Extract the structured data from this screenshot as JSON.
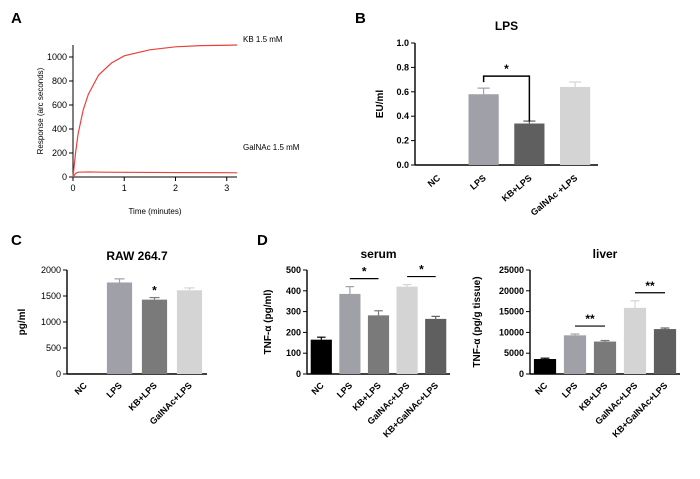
{
  "panels": {
    "A": "A",
    "B": "B",
    "C": "C",
    "D": "D"
  },
  "chart_data": [
    {
      "id": "A",
      "type": "line",
      "title": "",
      "xlabel": "Time (minutes)",
      "ylabel": "Response (arc seconds)",
      "xlim": [
        0,
        3.2
      ],
      "ylim": [
        0,
        1100
      ],
      "xticks": [
        "0",
        "1",
        "2",
        "3"
      ],
      "yticks": [
        "0",
        "200",
        "400",
        "600",
        "800",
        "1000"
      ],
      "color": "#e8423c",
      "series": [
        {
          "name": "KB 1.5 mM",
          "x": [
            0,
            0.05,
            0.1,
            0.2,
            0.3,
            0.5,
            0.75,
            1.0,
            1.5,
            2.0,
            2.5,
            3.0,
            3.2
          ],
          "values": [
            0,
            200,
            360,
            560,
            690,
            850,
            950,
            1010,
            1060,
            1085,
            1095,
            1098,
            1100
          ]
        },
        {
          "name": "GalNAc 1.5 mM",
          "x": [
            0,
            0.05,
            0.1,
            0.3,
            0.6,
            1.0,
            2.0,
            3.0,
            3.2
          ],
          "values": [
            0,
            30,
            40,
            42,
            40,
            39,
            37,
            36,
            35
          ]
        }
      ]
    },
    {
      "id": "B",
      "type": "bar",
      "title": "LPS",
      "ylabel": "EU/ml",
      "ylim": [
        0,
        1.0
      ],
      "yticks": [
        "0.0",
        "0.2",
        "0.4",
        "0.6",
        "0.8",
        "1.0"
      ],
      "categories": [
        "NC",
        "LPS",
        "KB+LPS",
        "GalNAc +LPS"
      ],
      "values": [
        0,
        0.58,
        0.34,
        0.64
      ],
      "errors": [
        0,
        0.05,
        0.02,
        0.04
      ],
      "colors": [
        "#000000",
        "#a0a0a8",
        "#5f5f5f",
        "#d4d4d4"
      ],
      "significance": [
        {
          "from": 1,
          "to": 2,
          "label": "*"
        }
      ]
    },
    {
      "id": "C",
      "type": "bar",
      "title": "RAW 264.7",
      "ylabel": "pg/ml",
      "ylim": [
        0,
        2000
      ],
      "yticks": [
        "0",
        "500",
        "1000",
        "1500",
        "2000"
      ],
      "categories": [
        "NC",
        "LPS",
        "KB+LPS",
        "GalNAc+LPS"
      ],
      "values": [
        10,
        1760,
        1430,
        1610
      ],
      "errors": [
        0,
        70,
        40,
        45
      ],
      "colors": [
        "#000000",
        "#a0a0a8",
        "#7a7a7a",
        "#d4d4d4"
      ],
      "annotations": [
        {
          "index": 2,
          "label": "*"
        }
      ]
    },
    {
      "id": "D-serum",
      "type": "bar",
      "title": "serum",
      "ylabel": "TNF-α (pg/ml)",
      "ylim": [
        0,
        500
      ],
      "yticks": [
        "0",
        "100",
        "200",
        "300",
        "400",
        "500"
      ],
      "categories": [
        "NC",
        "LPS",
        "KB+LPS",
        "GalNAc+LPS",
        "KB+GalNAc+LPS"
      ],
      "values": [
        165,
        385,
        282,
        420,
        265
      ],
      "errors": [
        12,
        35,
        22,
        10,
        12
      ],
      "colors": [
        "#000000",
        "#a0a0a8",
        "#7a7a7a",
        "#d4d4d4",
        "#5f5f5f"
      ],
      "significance": [
        {
          "from": 1,
          "to": 2,
          "label": "*"
        },
        {
          "from": 3,
          "to": 4,
          "label": "*"
        }
      ]
    },
    {
      "id": "D-liver",
      "type": "bar",
      "title": "liver",
      "ylabel": "TNF-α (pg/g tissue)",
      "ylim": [
        0,
        25000
      ],
      "yticks": [
        "0",
        "5000",
        "10000",
        "15000",
        "20000",
        "25000"
      ],
      "categories": [
        "NC",
        "LPS",
        "KB+LPS",
        "GalNAc+LPS",
        "KB+GalNAc+LPS"
      ],
      "values": [
        3600,
        9300,
        7800,
        15900,
        10800
      ],
      "errors": [
        200,
        300,
        250,
        1700,
        250
      ],
      "colors": [
        "#000000",
        "#a0a0a8",
        "#7a7a7a",
        "#d4d4d4",
        "#5f5f5f"
      ],
      "significance": [
        {
          "from": 1,
          "to": 2,
          "label": "**"
        },
        {
          "from": 3,
          "to": 4,
          "label": "**"
        }
      ]
    }
  ]
}
